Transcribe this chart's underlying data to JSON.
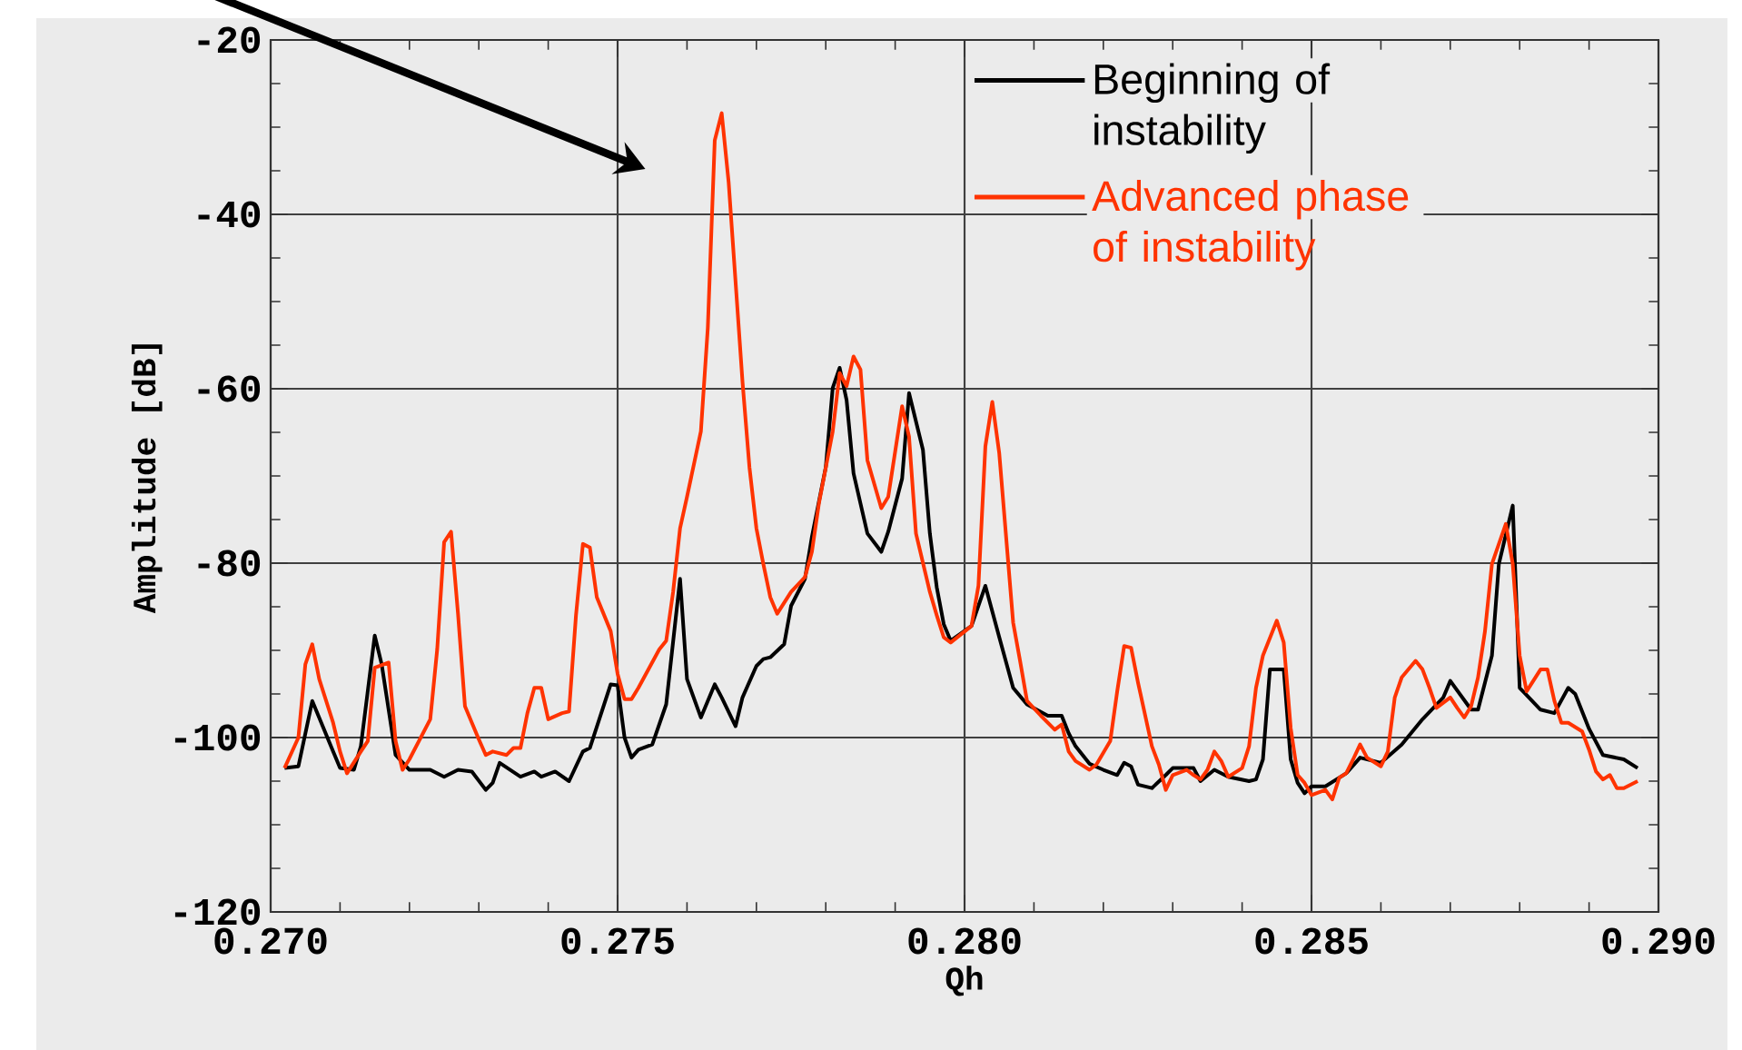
{
  "chart_data": {
    "type": "line",
    "xlabel": "Qh",
    "ylabel": "Amplitude [dB]",
    "xlim": [
      0.27,
      0.29
    ],
    "ylim": [
      -120,
      -20
    ],
    "xticks": [
      {
        "value": 0.27,
        "label": "0.270"
      },
      {
        "value": 0.275,
        "label": "0.275"
      },
      {
        "value": 0.28,
        "label": "0.280"
      },
      {
        "value": 0.285,
        "label": "0.285"
      },
      {
        "value": 0.29,
        "label": "0.290"
      }
    ],
    "yticks": [
      -120,
      -100,
      -80,
      -60,
      -40,
      -20
    ],
    "grid": true,
    "legend": "top right",
    "marker": "none",
    "line_style": "solid",
    "series": [
      {
        "name": "Beginning of instability",
        "color": "#000000",
        "x": [
          0.2702,
          0.2704,
          0.2706,
          0.2709,
          0.271,
          0.2712,
          0.2713,
          0.2715,
          0.2716,
          0.2718,
          0.272,
          0.2723,
          0.2725,
          0.2727,
          0.2729,
          0.2731,
          0.2732,
          0.2733,
          0.2736,
          0.2738,
          0.2739,
          0.2741,
          0.2743,
          0.2745,
          0.2746,
          0.2749,
          0.275,
          0.2751,
          0.2752,
          0.2753,
          0.2755,
          0.2757,
          0.2759,
          0.276,
          0.2762,
          0.2764,
          0.2765,
          0.2767,
          0.2768,
          0.277,
          0.2771,
          0.2772,
          0.2774,
          0.2775,
          0.2777,
          0.2778,
          0.278,
          0.2781,
          0.2782,
          0.2783,
          0.2784,
          0.2786,
          0.2788,
          0.2789,
          0.2791,
          0.2792,
          0.2794,
          0.2795,
          0.2796,
          0.2797,
          0.2798,
          0.2801,
          0.2803,
          0.2805,
          0.2807,
          0.2809,
          0.2812,
          0.2814,
          0.2815,
          0.2816,
          0.2818,
          0.282,
          0.2822,
          0.2823,
          0.2824,
          0.2825,
          0.2827,
          0.2829,
          0.283,
          0.2833,
          0.2834,
          0.2836,
          0.2838,
          0.2841,
          0.2842,
          0.2843,
          0.2844,
          0.2846,
          0.2847,
          0.2848,
          0.2849,
          0.285,
          0.2852,
          0.2855,
          0.2857,
          0.286,
          0.2863,
          0.2866,
          0.2869,
          0.287,
          0.2873,
          0.2874,
          0.2876,
          0.2877,
          0.2879,
          0.288,
          0.2883,
          0.2885,
          0.2887,
          0.2888,
          0.289,
          0.2892,
          0.2895,
          0.2897
        ],
        "values": [
          -103.5,
          -103.3,
          -95.8,
          -101.6,
          -103.5,
          -103.7,
          -101,
          -88.3,
          -91.6,
          -102,
          -103.7,
          -103.7,
          -104.5,
          -103.7,
          -103.9,
          -106,
          -105.2,
          -102.9,
          -104.5,
          -103.9,
          -104.5,
          -103.9,
          -105,
          -101.6,
          -101.2,
          -93.9,
          -94,
          -100,
          -102.3,
          -101.4,
          -100.8,
          -96.2,
          -81.8,
          -93.3,
          -97.7,
          -93.9,
          -95.4,
          -98.7,
          -95.4,
          -91.8,
          -91,
          -90.8,
          -89.3,
          -84.9,
          -81.8,
          -77,
          -69,
          -59.9,
          -57.6,
          -61.3,
          -69.7,
          -76.6,
          -78.7,
          -76.4,
          -70.3,
          -60.5,
          -67,
          -76.6,
          -82.8,
          -87,
          -88.9,
          -87.2,
          -82.6,
          -88.5,
          -94.3,
          -96.2,
          -97.5,
          -97.5,
          -99.5,
          -101,
          -103,
          -103.7,
          -104.3,
          -102.9,
          -103.3,
          -105.4,
          -105.8,
          -104.3,
          -103.5,
          -103.5,
          -105,
          -103.7,
          -104.5,
          -105,
          -104.8,
          -102.5,
          -92.2,
          -92.2,
          -102.5,
          -105.2,
          -106.4,
          -105.6,
          -105.6,
          -104.1,
          -102.3,
          -102.9,
          -100.8,
          -97.9,
          -95.4,
          -93.5,
          -96.8,
          -96.8,
          -90.6,
          -80.1,
          -73.4,
          -94.3,
          -96.8,
          -97.2,
          -94.3,
          -95,
          -99,
          -102,
          -102.5,
          -103.5
        ]
      },
      {
        "name": "Advanced phase of instability",
        "color": "#ff3300",
        "x": [
          0.2702,
          0.2704,
          0.2705,
          0.2706,
          0.2707,
          0.2709,
          0.271,
          0.2711,
          0.2713,
          0.2714,
          0.2715,
          0.2717,
          0.2718,
          0.2719,
          0.272,
          0.2723,
          0.2724,
          0.2725,
          0.2726,
          0.2727,
          0.2728,
          0.273,
          0.2731,
          0.2732,
          0.2734,
          0.2735,
          0.2736,
          0.2737,
          0.2738,
          0.2739,
          0.274,
          0.2742,
          0.2743,
          0.2744,
          0.2745,
          0.2746,
          0.2747,
          0.2749,
          0.275,
          0.2751,
          0.2752,
          0.2753,
          0.2756,
          0.2757,
          0.2758,
          0.2759,
          0.276,
          0.2762,
          0.2763,
          0.2764,
          0.2765,
          0.2766,
          0.2768,
          0.2769,
          0.277,
          0.2771,
          0.2772,
          0.2773,
          0.2775,
          0.2777,
          0.2778,
          0.2779,
          0.2781,
          0.2782,
          0.2783,
          0.2784,
          0.2785,
          0.2786,
          0.2788,
          0.2789,
          0.279,
          0.2791,
          0.2792,
          0.2793,
          0.2795,
          0.2796,
          0.2797,
          0.2798,
          0.2801,
          0.2802,
          0.2803,
          0.2804,
          0.2805,
          0.2807,
          0.2808,
          0.2809,
          0.2811,
          0.2813,
          0.2814,
          0.2815,
          0.2816,
          0.2818,
          0.2819,
          0.2821,
          0.2822,
          0.2823,
          0.2824,
          0.2825,
          0.2827,
          0.2828,
          0.2829,
          0.283,
          0.2832,
          0.2833,
          0.2834,
          0.2835,
          0.2836,
          0.2837,
          0.2838,
          0.284,
          0.2841,
          0.2842,
          0.2843,
          0.2845,
          0.2846,
          0.2847,
          0.2848,
          0.2849,
          0.285,
          0.2852,
          0.2853,
          0.2854,
          0.2855,
          0.2856,
          0.2857,
          0.2858,
          0.286,
          0.2861,
          0.2862,
          0.2863,
          0.2865,
          0.2866,
          0.2867,
          0.2868,
          0.287,
          0.2871,
          0.2872,
          0.2873,
          0.2874,
          0.2875,
          0.2876,
          0.2878,
          0.2879,
          0.288,
          0.2881,
          0.2883,
          0.2884,
          0.2885,
          0.2886,
          0.2887,
          0.2889,
          0.289,
          0.2891,
          0.2892,
          0.2893,
          0.2894,
          0.2895,
          0.2897
        ],
        "values": [
          -103.5,
          -100,
          -91.6,
          -89.3,
          -93.3,
          -98.3,
          -101.6,
          -104.1,
          -101.6,
          -100.4,
          -92,
          -91.4,
          -100.4,
          -103.7,
          -102.5,
          -97.9,
          -89.9,
          -77.6,
          -76.4,
          -85.8,
          -96.4,
          -100.2,
          -102,
          -101.6,
          -102,
          -101.2,
          -101.2,
          -97.2,
          -94.3,
          -94.3,
          -97.9,
          -97.2,
          -97,
          -86,
          -77.8,
          -78.2,
          -83.9,
          -87.8,
          -92.7,
          -95.6,
          -95.6,
          -94.3,
          -89.9,
          -88.9,
          -83.3,
          -76,
          -72.4,
          -64.9,
          -53,
          -31.5,
          -28.4,
          -36.3,
          -59.2,
          -69,
          -76,
          -80.1,
          -83.9,
          -85.8,
          -83.3,
          -81.6,
          -78.7,
          -73.2,
          -64.9,
          -58.2,
          -59.7,
          -56.3,
          -57.8,
          -68.2,
          -73.7,
          -72.4,
          -67.2,
          -62,
          -65.5,
          -76.6,
          -83.3,
          -86,
          -88.5,
          -89.1,
          -87.2,
          -82.6,
          -66.6,
          -61.5,
          -67.4,
          -86.8,
          -91.2,
          -95.8,
          -97.5,
          -99.1,
          -98.5,
          -101.6,
          -102.7,
          -103.7,
          -103.1,
          -100.4,
          -94.7,
          -89.5,
          -89.7,
          -93.7,
          -101,
          -103.1,
          -106,
          -104.3,
          -103.7,
          -104.3,
          -104.8,
          -103.7,
          -101.6,
          -102.7,
          -104.5,
          -103.5,
          -101,
          -94.3,
          -90.6,
          -86.6,
          -89.1,
          -98.9,
          -104.3,
          -105.2,
          -106.6,
          -106,
          -107.1,
          -104.6,
          -104.1,
          -102.5,
          -100.8,
          -102.3,
          -103.3,
          -101.6,
          -95.4,
          -93.1,
          -91.2,
          -92.2,
          -94.3,
          -96.6,
          -95.4,
          -96.6,
          -97.7,
          -96.4,
          -93.1,
          -87.8,
          -80.1,
          -75.5,
          -80.1,
          -90.6,
          -94.7,
          -92.2,
          -92.2,
          -95.8,
          -98.3,
          -98.3,
          -99.3,
          -101.4,
          -103.9,
          -104.8,
          -104.3,
          -105.8,
          -105.8,
          -105
        ]
      }
    ]
  }
}
